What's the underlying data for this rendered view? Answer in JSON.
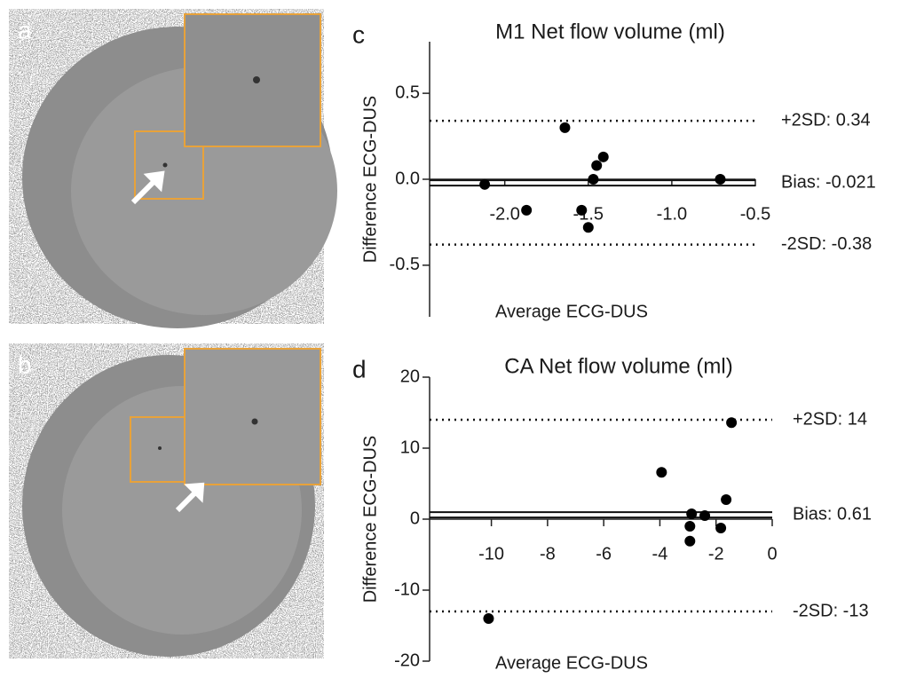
{
  "image_panels": [
    {
      "label": "a"
    },
    {
      "label": "b"
    }
  ],
  "chart_data": [
    {
      "type": "scatter",
      "label": "c",
      "title": "M1 Net flow volume (ml)",
      "x_label": "Average ECG-DUS",
      "y_label": "Difference ECG-DUS",
      "x": [
        -2.12,
        -1.87,
        -1.64,
        -1.54,
        -1.5,
        -1.47,
        -1.45,
        -1.41,
        -0.71
      ],
      "values": [
        -0.03,
        -0.18,
        0.3,
        -0.18,
        -0.28,
        0.0,
        0.08,
        0.13,
        0.0
      ],
      "color": "#000000",
      "xlim": [
        -2.45,
        -0.5
      ],
      "xticks": [
        {
          "value": -2.0,
          "label": "-2.0"
        },
        -1.5,
        {
          "value": -1.0,
          "label": "-1.0"
        },
        -0.5
      ],
      "ylim": [
        -0.8,
        0.8
      ],
      "yticks": [
        0.5,
        {
          "value": 0.0,
          "label": "0.0"
        },
        -0.5
      ],
      "reference_lines": [
        {
          "value": 0.34,
          "label": "+2SD: 0.34",
          "style": "dotted"
        },
        {
          "value": -0.021,
          "label": "Bias: -0.021",
          "style": "double"
        },
        {
          "value": -0.38,
          "label": "-2SD: -0.38",
          "style": "dotted"
        }
      ]
    },
    {
      "type": "scatter",
      "label": "d",
      "title": "CA Net flow volume (ml)",
      "x_label": "Average ECG-DUS",
      "y_label": "Difference ECG-DUS",
      "x": [
        -10.1,
        -3.94,
        -2.87,
        -2.93,
        -2.93,
        -2.4,
        -1.83,
        -1.64,
        -1.45
      ],
      "values": [
        -14,
        6.6,
        0.75,
        -1,
        -3.1,
        0.5,
        -1.25,
        2.75,
        13.6
      ],
      "color": "#000000",
      "xlim": [
        -12.2,
        0
      ],
      "xticks": [
        -10,
        -8,
        -6,
        -4,
        -2,
        0
      ],
      "ylim": [
        -20,
        20
      ],
      "yticks": [
        20,
        10,
        0,
        -10,
        -20
      ],
      "reference_lines": [
        {
          "value": 14,
          "label": "+2SD: 14",
          "style": "dotted"
        },
        {
          "value": 0.61,
          "label": "Bias: 0.61",
          "style": "double"
        },
        {
          "value": -13,
          "label": "-2SD: -13",
          "style": "dotted"
        }
      ]
    }
  ]
}
